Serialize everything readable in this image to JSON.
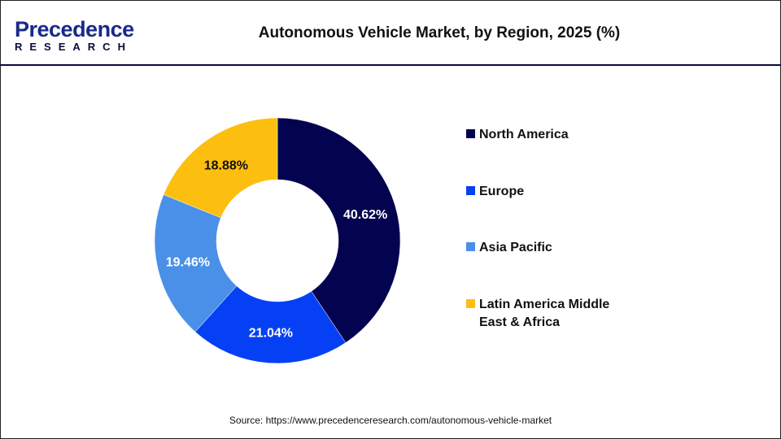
{
  "logo": {
    "line1": "Precedence",
    "line2": "RESEARCH"
  },
  "title": "Autonomous Vehicle Market, by Region, 2025 (%)",
  "source": "Source: https://www.precedenceresearch.com/autonomous-vehicle-market",
  "chart_data": {
    "type": "pie",
    "variant": "donut",
    "title": "Autonomous Vehicle Market, by Region, 2025 (%)",
    "categories": [
      "North America",
      "Europe",
      "Asia Pacific",
      "Latin America Middle East & Africa"
    ],
    "values": [
      40.62,
      21.04,
      19.46,
      18.88
    ],
    "data_labels": [
      "40.62%",
      "21.04%",
      "19.46%",
      "18.88%"
    ],
    "colors": [
      "#03034f",
      "#0540f5",
      "#4a90e8",
      "#fcbf0f"
    ],
    "label_colors": [
      "#ffffff",
      "#ffffff",
      "#ffffff",
      "#111111"
    ],
    "legend": "right"
  }
}
